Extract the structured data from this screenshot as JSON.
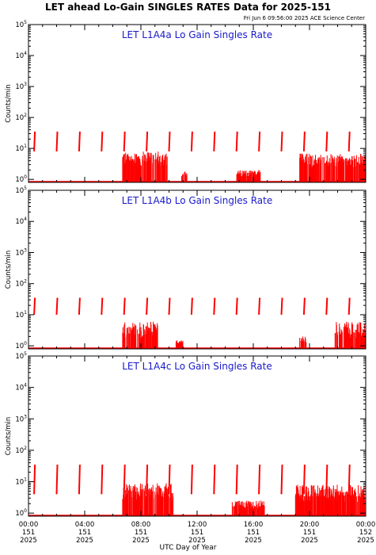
{
  "header": {
    "title": "LET ahead Lo-Gain SINGLES RATES Data for 2025-151",
    "timestamp": "Fri Jun  6 09:56:00 2025 ACE Science Center"
  },
  "colors": {
    "data": "#ff0000",
    "panel_title": "#1a1acc",
    "axes": "#000000"
  },
  "chart_data": [
    {
      "type": "line",
      "title": "LET L1A4a Lo Gain Singles Rate",
      "ylabel": "Counts/min",
      "yscale": "log",
      "ylim": [
        0.8,
        100000
      ],
      "yticks": [
        "10^0",
        "10^1",
        "10^2",
        "10^3",
        "10^4",
        "10^5"
      ],
      "xlim": [
        0,
        24
      ],
      "x_units": "hours UTC, day 151 of 2025",
      "calibration_spikes": {
        "times": [
          0.4,
          2.0,
          3.6,
          5.2,
          6.8,
          8.4,
          10.0,
          11.6,
          13.2,
          14.8,
          16.4,
          18.0,
          19.6,
          21.2,
          22.8
        ],
        "low": 8,
        "high": 35
      },
      "activity_intervals": [
        [
          6.7,
          9.9,
          1.5,
          8
        ],
        [
          10.9,
          11.3,
          1.0,
          2.0
        ],
        [
          14.8,
          16.5,
          1.0,
          2.0
        ],
        [
          19.3,
          24.0,
          1.5,
          7
        ]
      ],
      "baseline": 0.85
    },
    {
      "type": "line",
      "title": "LET L1A4b Lo Gain Singles Rate",
      "ylabel": "Counts/min",
      "yscale": "log",
      "ylim": [
        0.8,
        100000
      ],
      "yticks": [
        "10^0",
        "10^1",
        "10^2",
        "10^3",
        "10^4",
        "10^5"
      ],
      "xlim": [
        0,
        24
      ],
      "x_units": "hours UTC, day 151 of 2025",
      "calibration_spikes": {
        "times": [
          0.4,
          2.0,
          3.6,
          5.2,
          6.8,
          8.4,
          10.0,
          11.6,
          13.2,
          14.8,
          16.4,
          18.0,
          19.6,
          21.2,
          22.8
        ],
        "low": 10,
        "high": 35
      },
      "activity_intervals": [
        [
          6.7,
          9.2,
          1.0,
          6
        ],
        [
          10.5,
          11.0,
          1.0,
          1.5
        ],
        [
          19.3,
          19.8,
          1.0,
          2.0
        ],
        [
          21.8,
          24.0,
          1.0,
          6
        ]
      ],
      "baseline": 0.85
    },
    {
      "type": "line",
      "title": "LET L1A4c Lo Gain Singles Rate",
      "ylabel": "Counts/min",
      "yscale": "log",
      "ylim": [
        0.8,
        100000
      ],
      "yticks": [
        "10^0",
        "10^1",
        "10^2",
        "10^3",
        "10^4",
        "10^5"
      ],
      "xlim": [
        0,
        24
      ],
      "x_units": "hours UTC, day 151 of 2025",
      "xticks": [
        {
          "hour": 0,
          "time": "00:00",
          "doy": "151",
          "year": "2025"
        },
        {
          "hour": 4,
          "time": "04:00",
          "doy": "151",
          "year": "2025"
        },
        {
          "hour": 8,
          "time": "08:00",
          "doy": "151",
          "year": "2025"
        },
        {
          "hour": 12,
          "time": "12:00",
          "doy": "151",
          "year": "2025"
        },
        {
          "hour": 16,
          "time": "16:00",
          "doy": "151",
          "year": "2025"
        },
        {
          "hour": 20,
          "time": "20:00",
          "doy": "151",
          "year": "2025"
        },
        {
          "hour": 24,
          "time": "00:00",
          "doy": "152",
          "year": "2025"
        }
      ],
      "xlabel": "UTC Day of Year",
      "calibration_spikes": {
        "times": [
          0.4,
          2.0,
          3.6,
          5.2,
          6.8,
          8.4,
          10.0,
          11.6,
          13.2,
          14.8,
          16.4,
          18.0,
          19.6,
          21.2,
          22.8
        ],
        "low": 4,
        "high": 35
      },
      "activity_intervals": [
        [
          6.7,
          10.3,
          1.5,
          9
        ],
        [
          14.5,
          16.8,
          1.0,
          2.5
        ],
        [
          19.0,
          24.0,
          1.2,
          8
        ]
      ],
      "baseline": 0.85
    }
  ]
}
